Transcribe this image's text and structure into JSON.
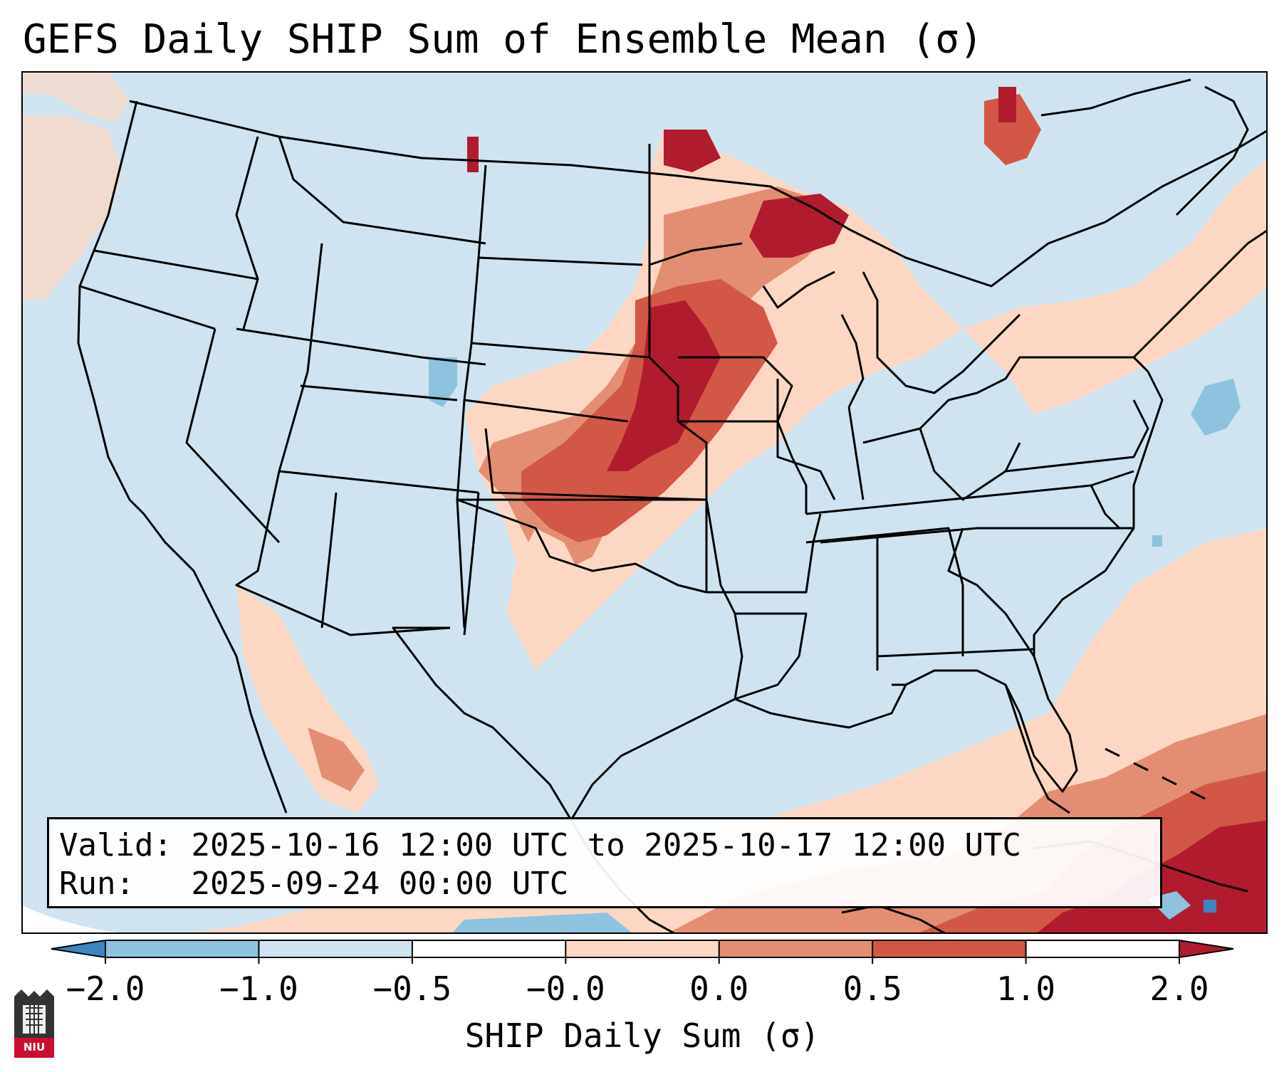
{
  "title": "GEFS Daily SHIP Sum of Ensemble Mean (σ)",
  "info": {
    "valid_label": "Valid:",
    "valid_value": "2025-10-16 12:00 UTC to 2025-10-17 12:00 UTC",
    "run_label": "Run:",
    "run_value": "2025-09-24 00:00 UTC"
  },
  "colorbar": {
    "label": "SHIP Daily Sum (σ)",
    "ticks": [
      "−2.0",
      "−1.0",
      "−0.5",
      "−0.0",
      "0.0",
      "0.5",
      "1.0",
      "2.0"
    ],
    "bins": [
      {
        "color": "#3b86c2"
      },
      {
        "color": "#8ec3df"
      },
      {
        "color": "#cfe4f0"
      },
      {
        "color": "#ffffff"
      },
      {
        "color": "#fcd8c4"
      },
      {
        "color": "#e38e72"
      },
      {
        "color": "#d35746"
      },
      {
        "color": "#b01c2e"
      }
    ]
  },
  "logo": {
    "text": "NIU"
  }
}
